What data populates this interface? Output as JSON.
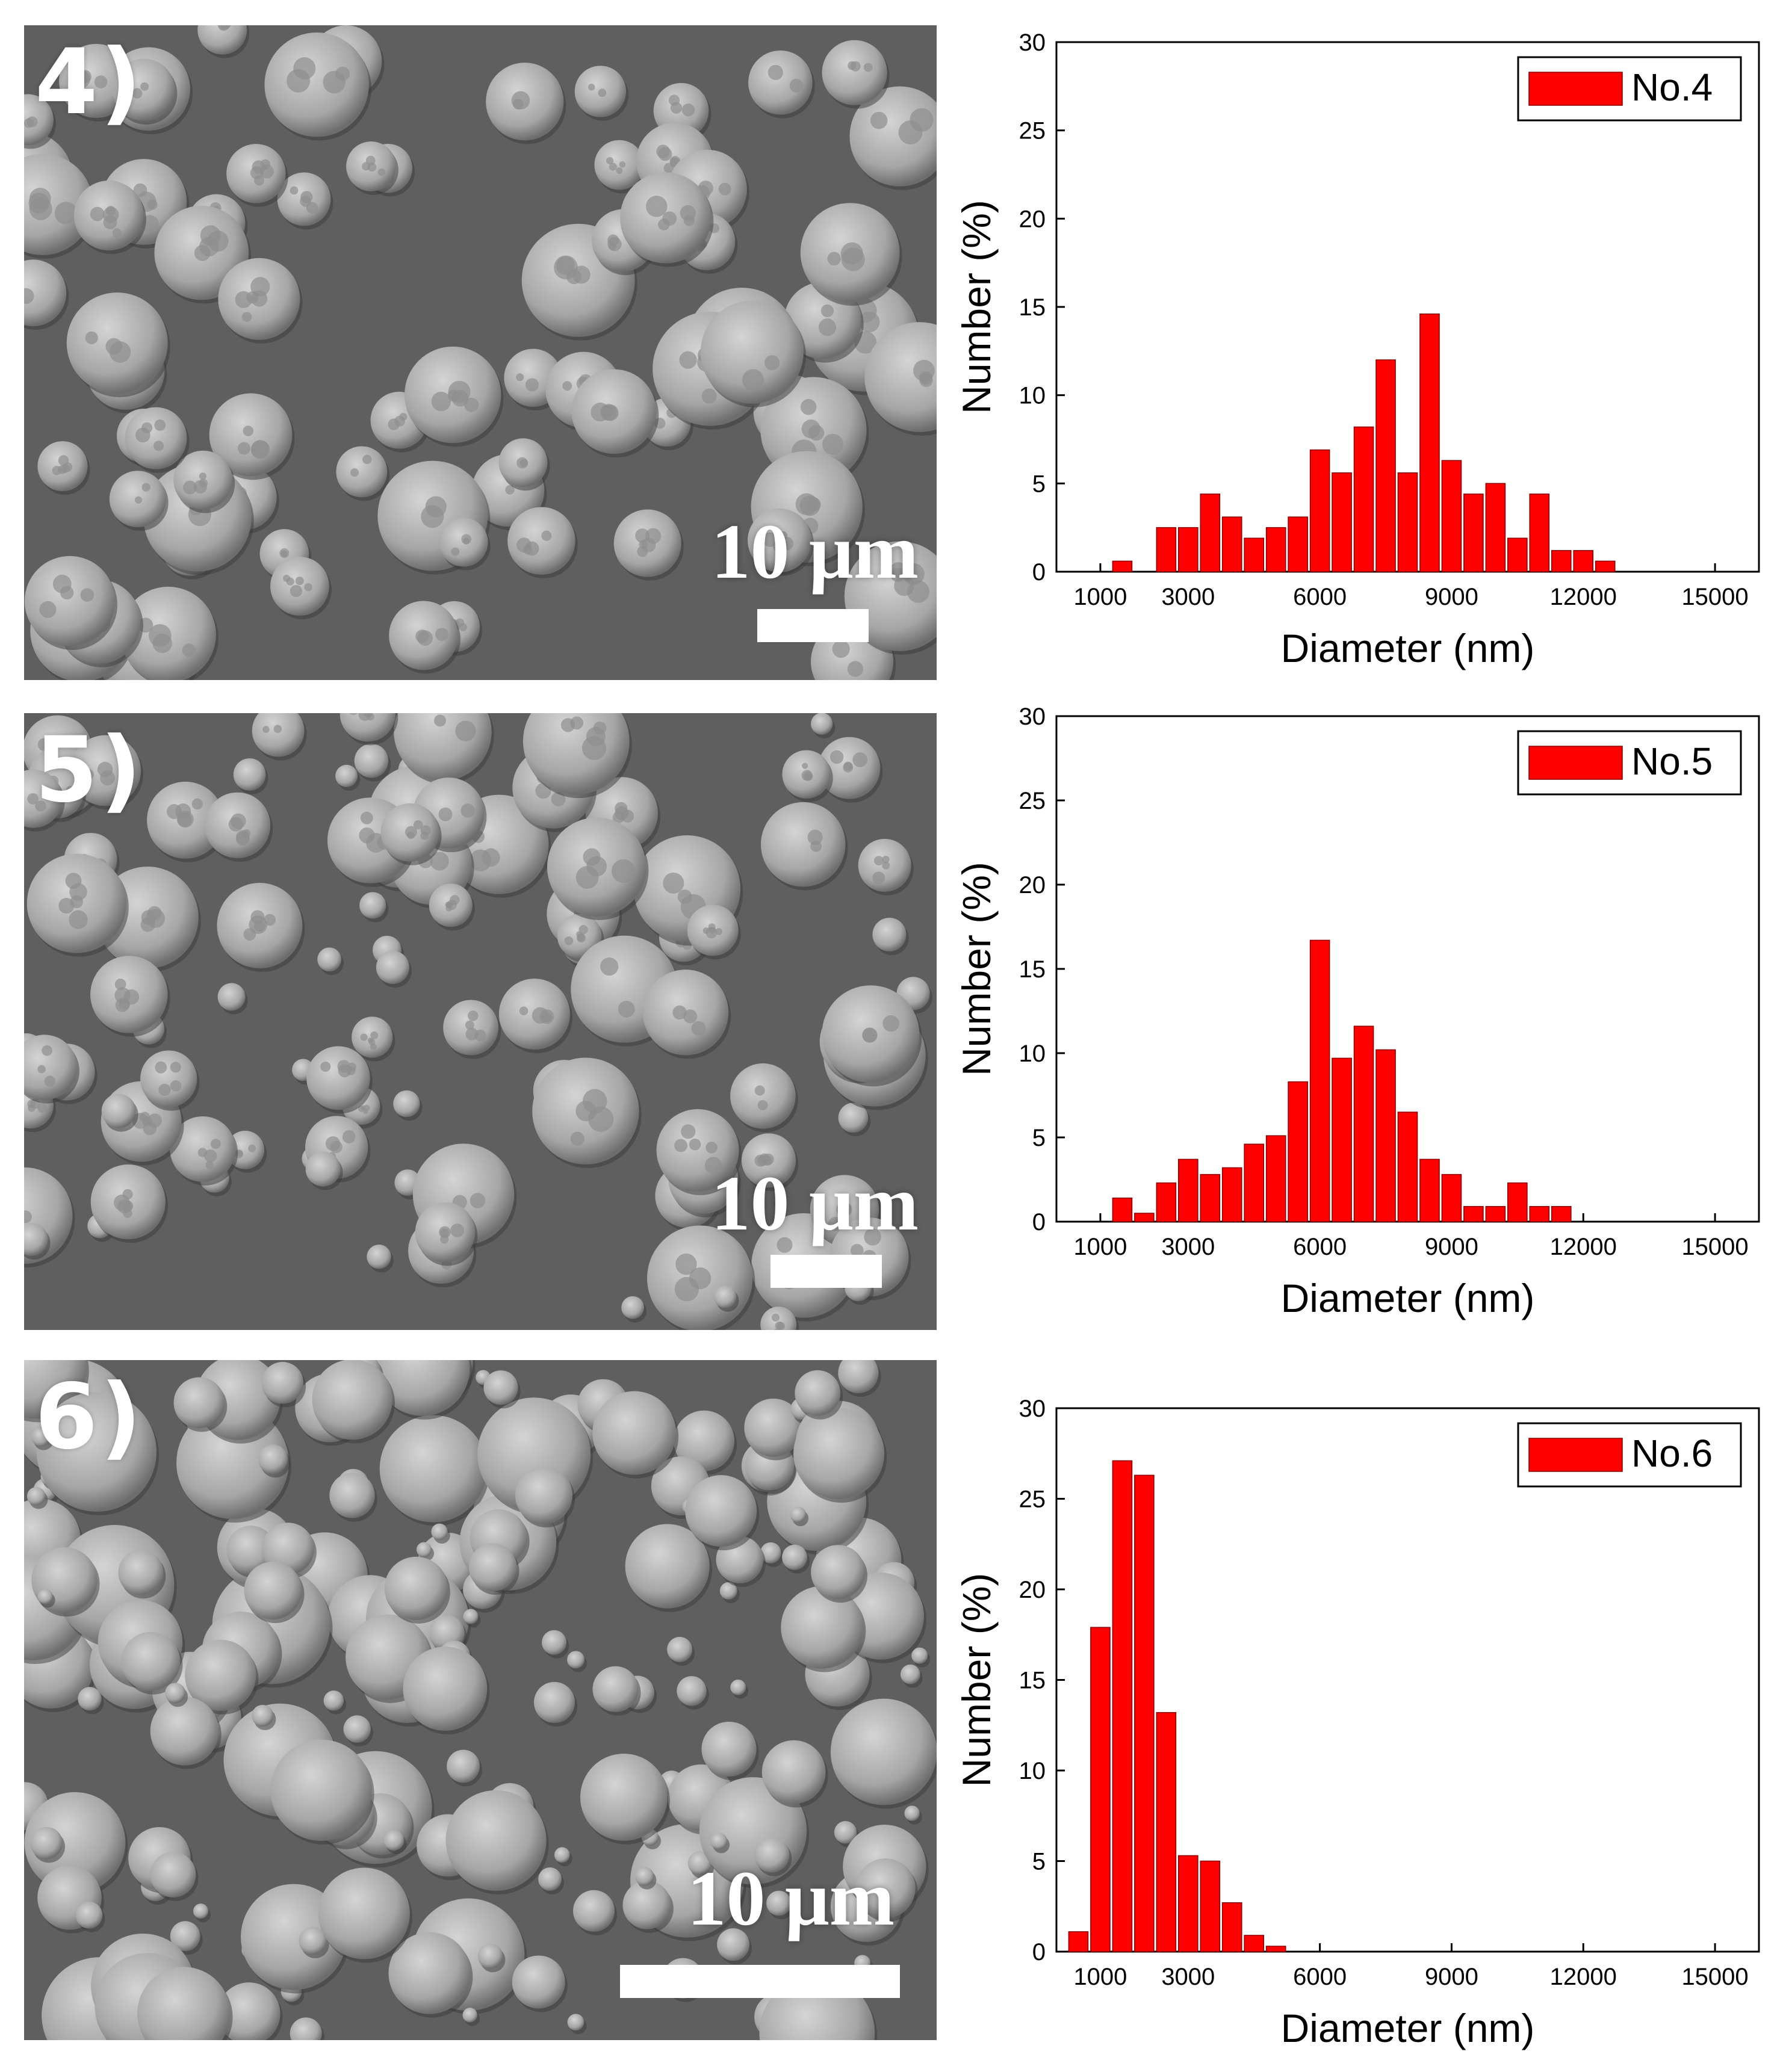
{
  "panels": [
    {
      "label": "4)",
      "scale_text": "10 μm"
    },
    {
      "label": "5)",
      "scale_text": "10 μm"
    },
    {
      "label": "6)",
      "scale_text": "10 μm"
    }
  ],
  "colors": {
    "bar": "#ff0000",
    "bar_edge": "#8b0000"
  },
  "chart_data": [
    {
      "type": "bar",
      "legend": "No.4",
      "legend_position": "top-right",
      "xlabel": "Diameter (nm)",
      "ylabel": "Number (%)",
      "xlim": [
        0,
        16000
      ],
      "ylim": [
        0,
        30
      ],
      "xticks": [
        1000,
        3000,
        6000,
        9000,
        12000,
        15000
      ],
      "yticks": [
        0,
        5,
        10,
        15,
        20,
        25,
        30
      ],
      "bin_width": 500,
      "series": [
        {
          "x": [
            1500,
            2500,
            3000,
            3500,
            4000,
            4500,
            5000,
            5500,
            6000,
            6500,
            7000,
            7500,
            8000,
            8500,
            9000,
            9500,
            10000,
            10500,
            11000,
            11500,
            12000,
            12500
          ],
          "values": [
            0.6,
            2.5,
            2.5,
            4.4,
            3.1,
            1.9,
            2.5,
            3.1,
            6.9,
            5.6,
            8.2,
            12.0,
            5.6,
            14.6,
            6.3,
            4.4,
            5.0,
            1.9,
            4.4,
            1.2,
            1.2,
            0.6
          ]
        }
      ]
    },
    {
      "type": "bar",
      "legend": "No.5",
      "legend_position": "top-right",
      "xlabel": "Diameter (nm)",
      "ylabel": "Number (%)",
      "xlim": [
        0,
        16000
      ],
      "ylim": [
        0,
        30
      ],
      "xticks": [
        1000,
        3000,
        6000,
        9000,
        12000,
        15000
      ],
      "yticks": [
        0,
        5,
        10,
        15,
        20,
        25,
        30
      ],
      "bin_width": 500,
      "series": [
        {
          "x": [
            1500,
            2000,
            2500,
            3000,
            3500,
            4000,
            4500,
            5000,
            5500,
            6000,
            6500,
            7000,
            7500,
            8000,
            8500,
            9000,
            9500,
            10000,
            10500,
            11000,
            11500
          ],
          "values": [
            1.4,
            0.5,
            2.3,
            3.7,
            2.8,
            3.2,
            4.6,
            5.1,
            8.3,
            16.7,
            9.7,
            11.6,
            10.2,
            6.5,
            3.7,
            2.8,
            0.9,
            0.9,
            2.3,
            0.9,
            0.9
          ]
        }
      ]
    },
    {
      "type": "bar",
      "legend": "No.6",
      "legend_position": "top-right",
      "xlabel": "Diameter (nm)",
      "ylabel": "Number (%)",
      "xlim": [
        0,
        16000
      ],
      "ylim": [
        0,
        30
      ],
      "xticks": [
        1000,
        3000,
        6000,
        9000,
        12000,
        15000
      ],
      "yticks": [
        0,
        5,
        10,
        15,
        20,
        25,
        30
      ],
      "bin_width": 500,
      "series": [
        {
          "x": [
            500,
            1000,
            1500,
            2000,
            2500,
            3000,
            3500,
            4000,
            4500,
            5000
          ],
          "values": [
            1.1,
            17.9,
            27.1,
            26.3,
            13.2,
            5.3,
            5.0,
            2.7,
            0.9,
            0.3
          ]
        }
      ]
    }
  ]
}
